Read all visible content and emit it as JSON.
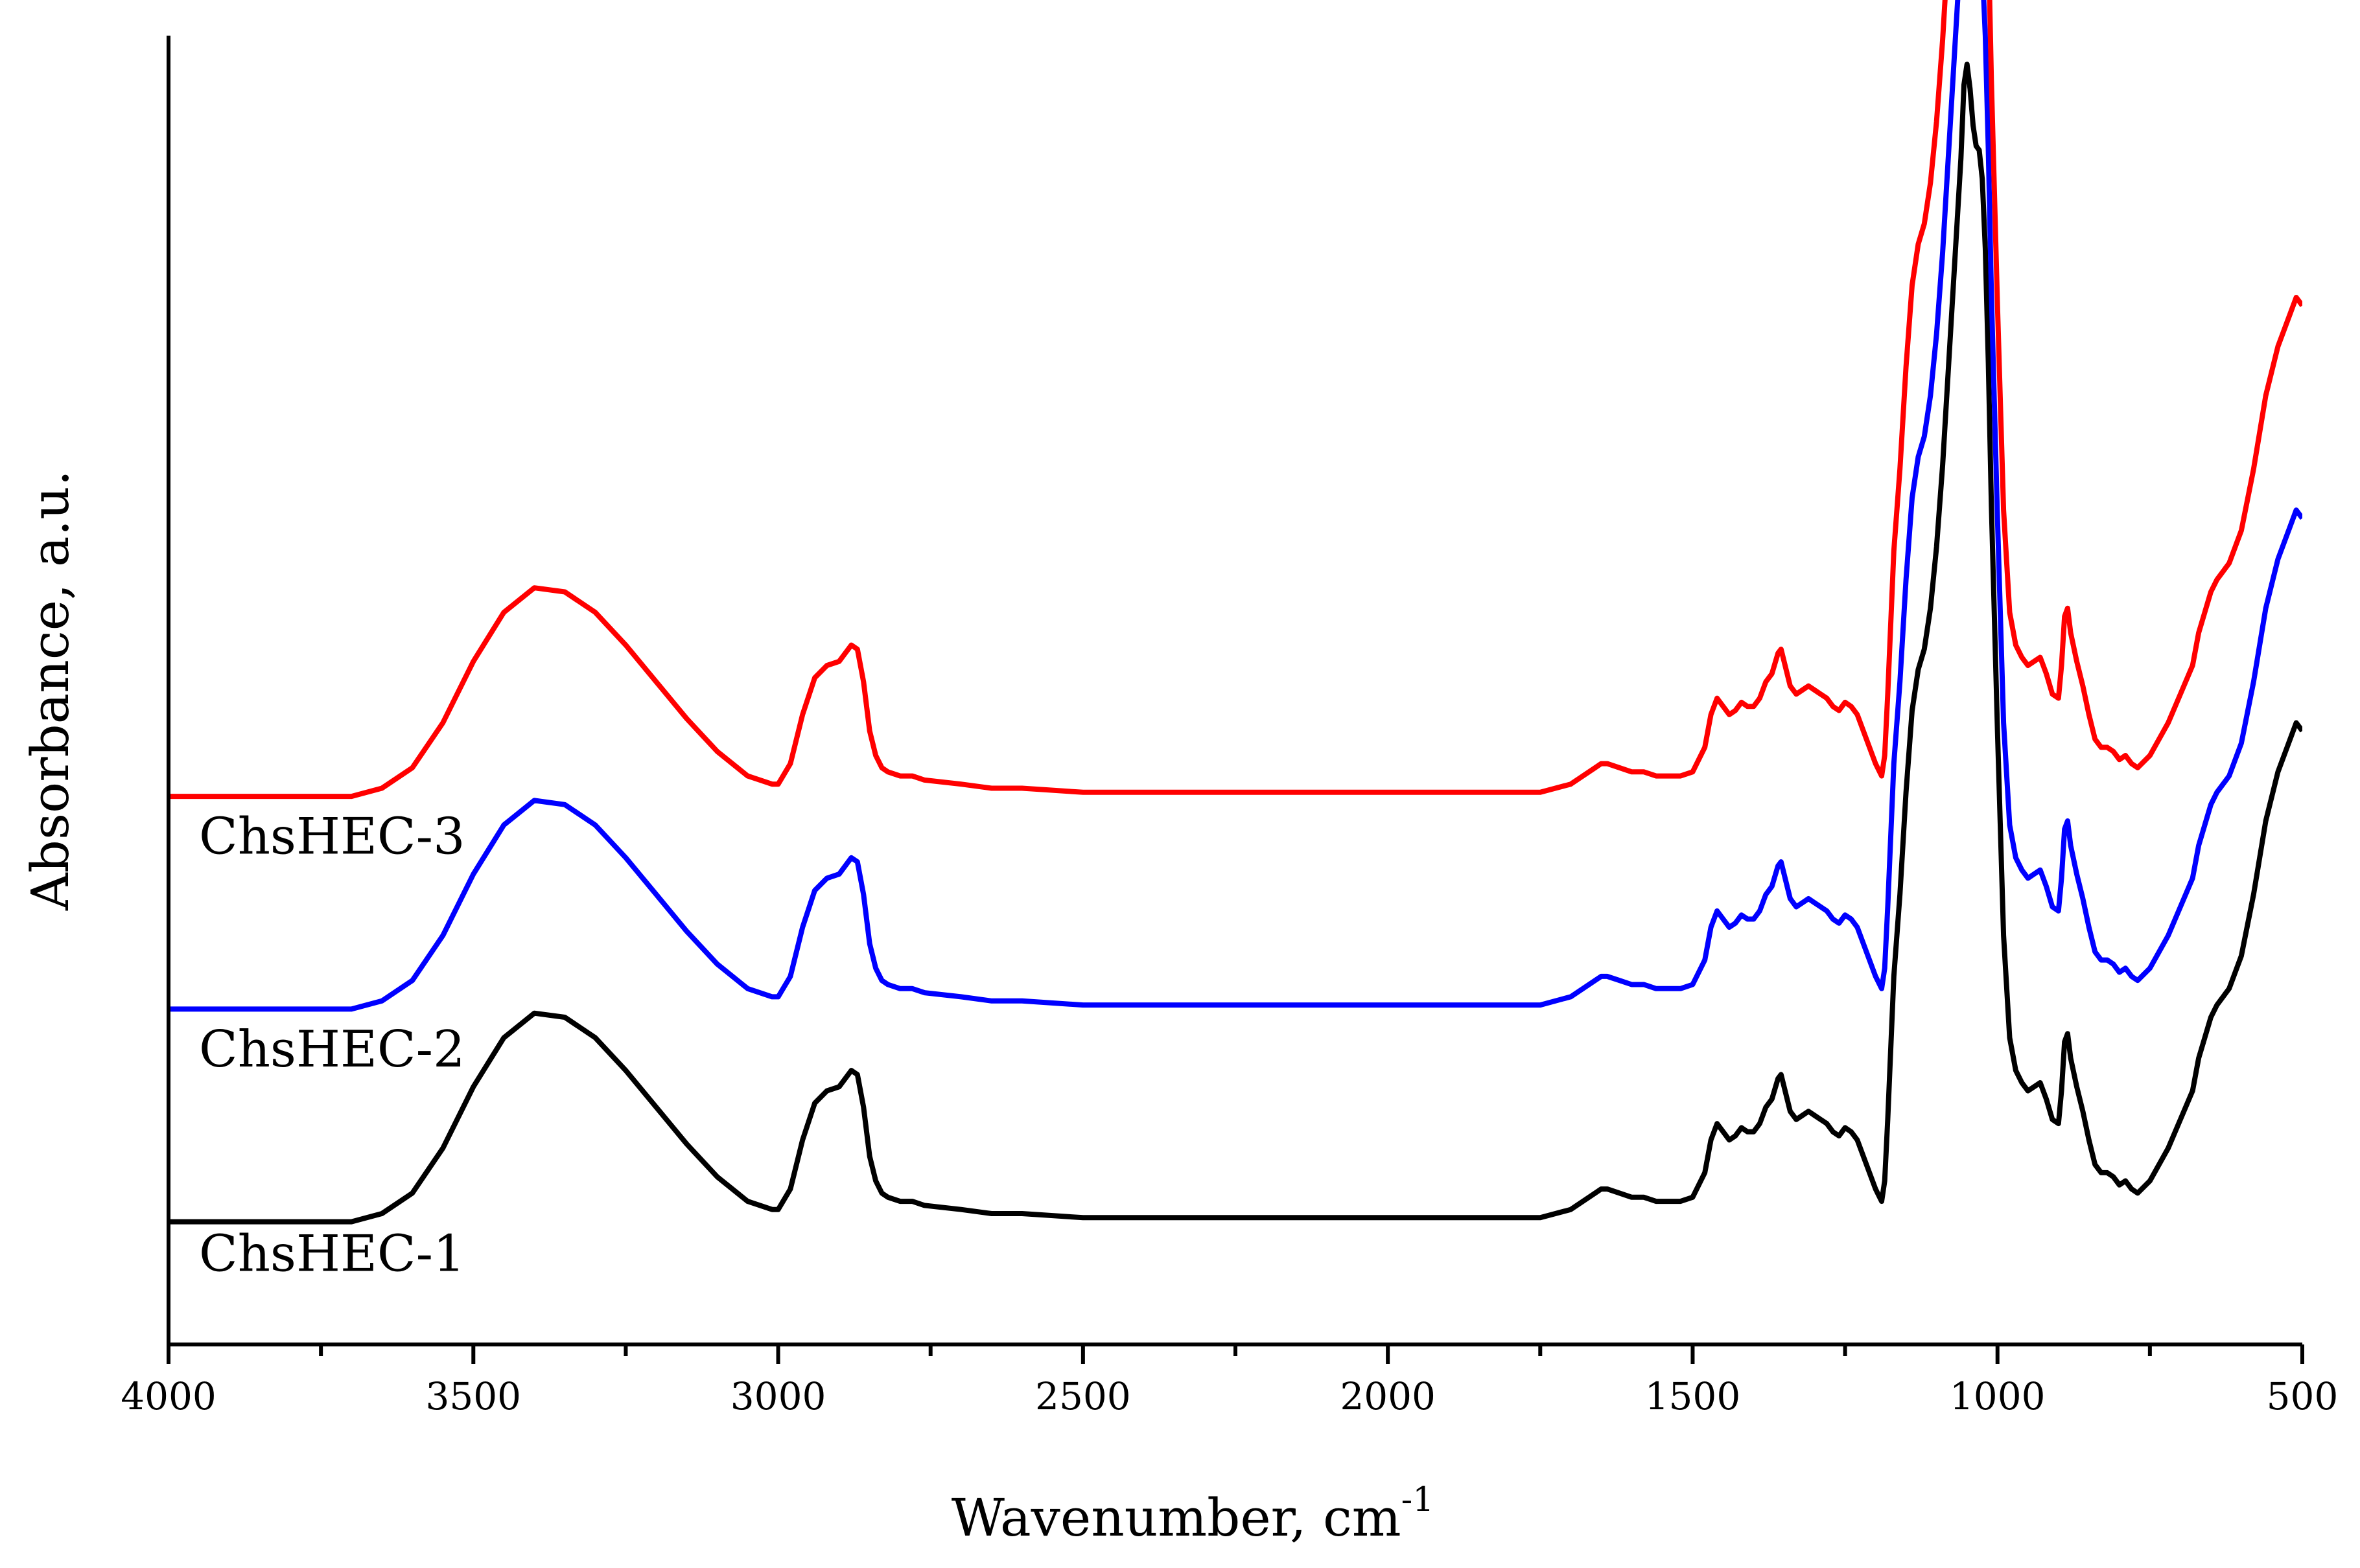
{
  "chart_data": {
    "type": "line",
    "title": "",
    "xlabel": "Wavenumber, cm",
    "xlabel_superscript": "-1",
    "ylabel": "Absorbance, a.u.",
    "xlim": [
      4000,
      500
    ],
    "x_reversed": true,
    "ylim": [
      -0.3,
      2.9
    ],
    "y_ticks_shown": false,
    "x_ticks": [
      4000,
      3500,
      3000,
      2500,
      2000,
      1500,
      1000,
      500
    ],
    "x_tick_labels": [
      "4000",
      "3500",
      "3000",
      "2500",
      "2000",
      "1500",
      "1000",
      "500"
    ],
    "grid": false,
    "legend": "none",
    "series": [
      {
        "name": "ChsHEC-1",
        "label": "ChsHEC-1",
        "color": "#000000",
        "offset": 0.0,
        "label_x": 3950,
        "label_y": -0.12
      },
      {
        "name": "ChsHEC-2",
        "label": "ChsHEC-2",
        "color": "#0000ff",
        "offset": 0.52,
        "label_x": 3950,
        "label_y": 0.38
      },
      {
        "name": "ChsHEC-3",
        "label": "ChsHEC-3",
        "color": "#ff0000",
        "offset": 1.04,
        "label_x": 3950,
        "label_y": 0.9
      }
    ],
    "base_spectrum": {
      "x": [
        4000,
        3900,
        3800,
        3700,
        3650,
        3600,
        3550,
        3500,
        3450,
        3400,
        3350,
        3300,
        3250,
        3200,
        3150,
        3100,
        3050,
        3010,
        3000,
        2980,
        2960,
        2940,
        2920,
        2900,
        2880,
        2870,
        2860,
        2850,
        2840,
        2830,
        2820,
        2800,
        2780,
        2760,
        2700,
        2650,
        2600,
        2500,
        2400,
        2300,
        2200,
        2100,
        2000,
        1900,
        1800,
        1750,
        1700,
        1680,
        1660,
        1650,
        1640,
        1620,
        1600,
        1580,
        1560,
        1540,
        1520,
        1500,
        1480,
        1470,
        1460,
        1450,
        1440,
        1430,
        1420,
        1410,
        1400,
        1390,
        1380,
        1370,
        1360,
        1355,
        1350,
        1340,
        1330,
        1320,
        1310,
        1300,
        1290,
        1280,
        1270,
        1260,
        1250,
        1240,
        1230,
        1220,
        1210,
        1200,
        1190,
        1185,
        1180,
        1170,
        1160,
        1150,
        1140,
        1130,
        1120,
        1110,
        1100,
        1090,
        1080,
        1070,
        1060,
        1055,
        1050,
        1045,
        1040,
        1035,
        1030,
        1025,
        1020,
        1015,
        1010,
        1000,
        990,
        980,
        970,
        960,
        950,
        940,
        930,
        920,
        910,
        900,
        895,
        890,
        885,
        880,
        870,
        860,
        850,
        840,
        830,
        820,
        810,
        800,
        790,
        780,
        770,
        750,
        720,
        700,
        680,
        670,
        660,
        650,
        640,
        620,
        600,
        580,
        560,
        540,
        520,
        510,
        500
      ],
      "y": [
        0.0,
        0.0,
        0.0,
        0.0,
        0.02,
        0.07,
        0.18,
        0.33,
        0.45,
        0.51,
        0.5,
        0.45,
        0.37,
        0.28,
        0.19,
        0.11,
        0.05,
        0.03,
        0.03,
        0.08,
        0.2,
        0.29,
        0.32,
        0.33,
        0.37,
        0.36,
        0.28,
        0.16,
        0.1,
        0.07,
        0.06,
        0.05,
        0.05,
        0.04,
        0.03,
        0.02,
        0.02,
        0.01,
        0.01,
        0.01,
        0.01,
        0.01,
        0.01,
        0.01,
        0.01,
        0.01,
        0.03,
        0.05,
        0.07,
        0.08,
        0.08,
        0.07,
        0.06,
        0.06,
        0.05,
        0.05,
        0.05,
        0.06,
        0.12,
        0.2,
        0.24,
        0.22,
        0.2,
        0.21,
        0.23,
        0.22,
        0.22,
        0.24,
        0.28,
        0.3,
        0.35,
        0.36,
        0.33,
        0.27,
        0.25,
        0.26,
        0.27,
        0.26,
        0.25,
        0.24,
        0.22,
        0.21,
        0.23,
        0.22,
        0.2,
        0.16,
        0.12,
        0.08,
        0.05,
        0.1,
        0.25,
        0.6,
        0.8,
        1.05,
        1.25,
        1.35,
        1.4,
        1.5,
        1.65,
        1.85,
        2.1,
        2.35,
        2.6,
        2.78,
        2.83,
        2.77,
        2.68,
        2.63,
        2.62,
        2.55,
        2.38,
        2.1,
        1.75,
        1.2,
        0.7,
        0.45,
        0.37,
        0.34,
        0.32,
        0.33,
        0.34,
        0.3,
        0.25,
        0.24,
        0.32,
        0.44,
        0.46,
        0.4,
        0.33,
        0.27,
        0.2,
        0.14,
        0.12,
        0.12,
        0.11,
        0.09,
        0.1,
        0.08,
        0.07,
        0.1,
        0.18,
        0.25,
        0.32,
        0.4,
        0.45,
        0.5,
        0.53,
        0.57,
        0.65,
        0.8,
        0.98,
        1.1,
        1.18,
        1.22,
        1.2
      ]
    }
  }
}
